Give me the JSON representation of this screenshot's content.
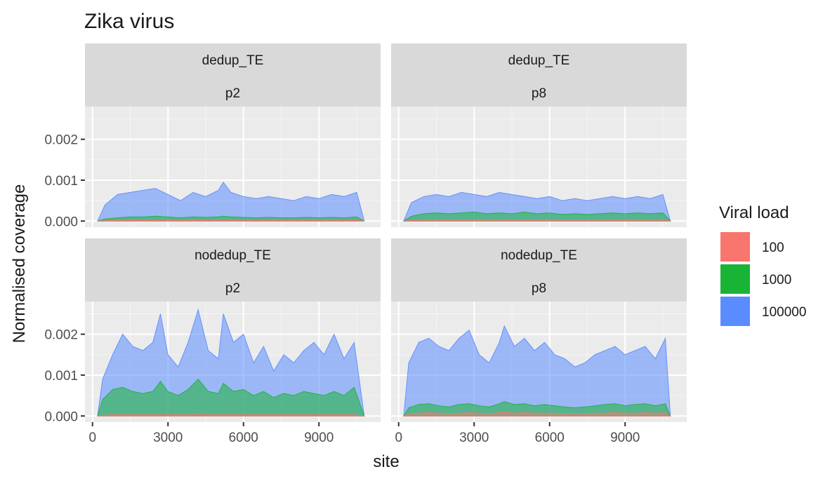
{
  "chart_data": {
    "type": "area",
    "title": "Zika virus",
    "xlabel": "site",
    "ylabel": "Normalised coverage",
    "xlim": [
      -300,
      11450
    ],
    "ylim": [
      -0.00015,
      0.0028
    ],
    "x_ticks": [
      0,
      3000,
      6000,
      9000
    ],
    "x_tick_labels": [
      "0",
      "3000",
      "6000",
      "9000"
    ],
    "y_ticks": [
      0,
      0.001,
      0.002
    ],
    "y_tick_labels": [
      "0.000",
      "0.001",
      "0.002"
    ],
    "grid": true,
    "legend": {
      "title": "Viral load",
      "placement": "right",
      "entries": [
        {
          "label": "100",
          "color": "#F8766D"
        },
        {
          "label": "1000",
          "color": "#19B435"
        },
        {
          "label": "100000",
          "color": "#5B8CFF"
        }
      ]
    },
    "facets": [
      {
        "strip_top": "dedup_TE",
        "strip_bottom": "p2",
        "x": [
          200,
          500,
          1000,
          1500,
          2000,
          2500,
          3000,
          3500,
          4000,
          4500,
          5000,
          5200,
          5500,
          6000,
          6500,
          7000,
          7500,
          8000,
          8500,
          9000,
          9500,
          10000,
          10500,
          10800
        ],
        "series": [
          {
            "name": "100000",
            "values": [
              0.0,
              0.0004,
              0.00065,
              0.0007,
              0.00075,
              0.0008,
              0.00065,
              0.0005,
              0.0007,
              0.0006,
              0.00075,
              0.00095,
              0.0007,
              0.0006,
              0.00055,
              0.0006,
              0.00055,
              0.0005,
              0.0006,
              0.00055,
              0.00065,
              0.0006,
              0.0007,
              0.0
            ]
          },
          {
            "name": "1000",
            "values": [
              0.0,
              5e-05,
              8e-05,
              0.0001,
              0.0001,
              0.00012,
              0.0001,
              8e-05,
              0.0001,
              9e-05,
              0.0001,
              0.00012,
              0.0001,
              9e-05,
              8e-05,
              9e-05,
              8e-05,
              8e-05,
              9e-05,
              8e-05,
              9e-05,
              8e-05,
              0.0001,
              0.0
            ]
          },
          {
            "name": "100",
            "values": [
              0.0,
              1e-05,
              2e-05,
              2e-05,
              2e-05,
              2e-05,
              2e-05,
              2e-05,
              2e-05,
              2e-05,
              2e-05,
              2e-05,
              2e-05,
              2e-05,
              2e-05,
              2e-05,
              2e-05,
              2e-05,
              2e-05,
              2e-05,
              2e-05,
              2e-05,
              2e-05,
              0.0
            ]
          }
        ]
      },
      {
        "strip_top": "dedup_TE",
        "strip_bottom": "p8",
        "x": [
          200,
          500,
          1000,
          1500,
          2000,
          2500,
          3000,
          3500,
          4000,
          4500,
          5000,
          5500,
          6000,
          6500,
          7000,
          7500,
          8000,
          8500,
          9000,
          9500,
          10000,
          10500,
          10800
        ],
        "series": [
          {
            "name": "100000",
            "values": [
              0.0,
              0.00045,
              0.0006,
              0.00065,
              0.0006,
              0.0007,
              0.00065,
              0.0006,
              0.0007,
              0.00065,
              0.0006,
              0.00055,
              0.0006,
              0.0005,
              0.00055,
              0.0005,
              0.00055,
              0.0006,
              0.00055,
              0.0006,
              0.00055,
              0.00065,
              0.0
            ]
          },
          {
            "name": "1000",
            "values": [
              0.0,
              0.00012,
              0.00018,
              0.0002,
              0.00018,
              0.0002,
              0.00022,
              0.00018,
              0.0002,
              0.00018,
              0.00022,
              0.00018,
              0.0002,
              0.00016,
              0.00018,
              0.00016,
              0.00018,
              0.0002,
              0.00018,
              0.0002,
              0.00018,
              0.0002,
              0.0
            ]
          },
          {
            "name": "100",
            "values": [
              0.0,
              2e-05,
              3e-05,
              3e-05,
              3e-05,
              3e-05,
              3e-05,
              3e-05,
              3e-05,
              3e-05,
              3e-05,
              3e-05,
              3e-05,
              3e-05,
              3e-05,
              3e-05,
              3e-05,
              3e-05,
              3e-05,
              3e-05,
              3e-05,
              3e-05,
              0.0
            ]
          }
        ]
      },
      {
        "strip_top": "nodedup_TE",
        "strip_bottom": "p2",
        "x": [
          200,
          400,
          800,
          1200,
          1600,
          2000,
          2400,
          2700,
          3000,
          3400,
          3800,
          4200,
          4600,
          5000,
          5200,
          5600,
          6000,
          6400,
          6800,
          7200,
          7600,
          8000,
          8400,
          8800,
          9200,
          9600,
          10000,
          10400,
          10800
        ],
        "series": [
          {
            "name": "100000",
            "values": [
              0.0,
              0.0009,
              0.0015,
              0.002,
              0.0017,
              0.0016,
              0.0018,
              0.0025,
              0.0015,
              0.0012,
              0.0018,
              0.0026,
              0.0016,
              0.0014,
              0.0025,
              0.0018,
              0.002,
              0.0013,
              0.0017,
              0.0011,
              0.0015,
              0.0013,
              0.0016,
              0.0018,
              0.0015,
              0.002,
              0.0014,
              0.0018,
              0.0
            ]
          },
          {
            "name": "1000",
            "values": [
              0.0,
              0.0004,
              0.00065,
              0.0007,
              0.0006,
              0.00055,
              0.0006,
              0.00085,
              0.0006,
              0.0005,
              0.00065,
              0.0009,
              0.0006,
              0.00055,
              0.0008,
              0.0006,
              0.00065,
              0.0005,
              0.0006,
              0.00045,
              0.00055,
              0.0005,
              0.0006,
              0.00055,
              0.0005,
              0.0006,
              0.0005,
              0.0007,
              0.0
            ]
          },
          {
            "name": "100",
            "values": [
              0.0,
              2e-05,
              3e-05,
              3e-05,
              3e-05,
              3e-05,
              3e-05,
              4e-05,
              3e-05,
              3e-05,
              3e-05,
              4e-05,
              3e-05,
              3e-05,
              4e-05,
              3e-05,
              3e-05,
              3e-05,
              3e-05,
              3e-05,
              3e-05,
              3e-05,
              3e-05,
              3e-05,
              3e-05,
              3e-05,
              3e-05,
              3e-05,
              0.0
            ]
          }
        ]
      },
      {
        "strip_top": "nodedup_TE",
        "strip_bottom": "p8",
        "x": [
          200,
          400,
          800,
          1200,
          1600,
          2000,
          2400,
          2800,
          3200,
          3600,
          4000,
          4200,
          4600,
          5000,
          5400,
          5800,
          6200,
          6600,
          7000,
          7400,
          7800,
          8200,
          8600,
          9000,
          9400,
          9800,
          10200,
          10600,
          10800
        ],
        "series": [
          {
            "name": "100000",
            "values": [
              0.0,
              0.0013,
              0.0018,
              0.0019,
              0.0017,
              0.0016,
              0.0019,
              0.0021,
              0.0015,
              0.0013,
              0.0018,
              0.0022,
              0.0017,
              0.0019,
              0.0016,
              0.0018,
              0.0015,
              0.0014,
              0.0012,
              0.0013,
              0.0015,
              0.0016,
              0.0017,
              0.0015,
              0.0016,
              0.0017,
              0.0014,
              0.0019,
              0.0
            ]
          },
          {
            "name": "1000",
            "values": [
              0.0,
              0.0002,
              0.00028,
              0.0003,
              0.00025,
              0.00022,
              0.00028,
              0.0003,
              0.00025,
              0.00022,
              0.0003,
              0.00035,
              0.00028,
              0.0003,
              0.00025,
              0.00028,
              0.00025,
              0.00022,
              0.0002,
              0.00022,
              0.00025,
              0.00028,
              0.0003,
              0.00025,
              0.00028,
              0.0003,
              0.00025,
              0.0003,
              0.0
            ]
          },
          {
            "name": "100",
            "values": [
              0.0,
              5e-05,
              7e-05,
              8e-05,
              7e-05,
              6e-05,
              7e-05,
              8e-05,
              7e-05,
              6e-05,
              8e-05,
              9e-05,
              7e-05,
              8e-05,
              7e-05,
              7e-05,
              7e-05,
              6e-05,
              6e-05,
              6e-05,
              7e-05,
              7e-05,
              8e-05,
              7e-05,
              7e-05,
              8e-05,
              7e-05,
              8e-05,
              0.0
            ]
          }
        ]
      }
    ]
  }
}
